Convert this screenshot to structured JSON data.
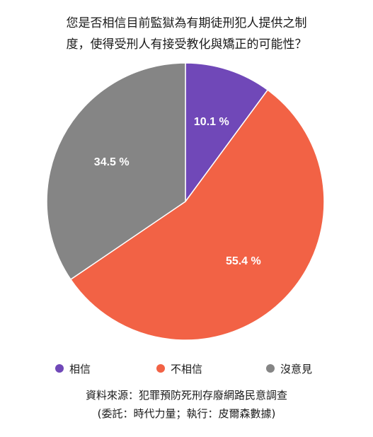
{
  "chart_data": {
    "type": "pie",
    "title_lines": [
      "您是否相信目前監獄為有期徒刑犯人提供之制",
      "度，使得受刑人有接受教化與矯正的可能性？"
    ],
    "slices": [
      {
        "name": "相信",
        "value": 10.1,
        "label": "10.1 %",
        "color": "#7048b8"
      },
      {
        "name": "不相信",
        "value": 55.4,
        "label": "55.4 %",
        "color": "#f26245"
      },
      {
        "name": "沒意見",
        "value": 34.5,
        "label": "34.5 %",
        "color": "#858585"
      }
    ],
    "start_angle": "12 o'clock",
    "direction": "clockwise",
    "legend_position": "bottom"
  },
  "source": {
    "line1": "資料來源：犯罪預防死刑存廢網路民意調查",
    "line2": "(委託：時代力量；執行：皮爾森數據)"
  }
}
